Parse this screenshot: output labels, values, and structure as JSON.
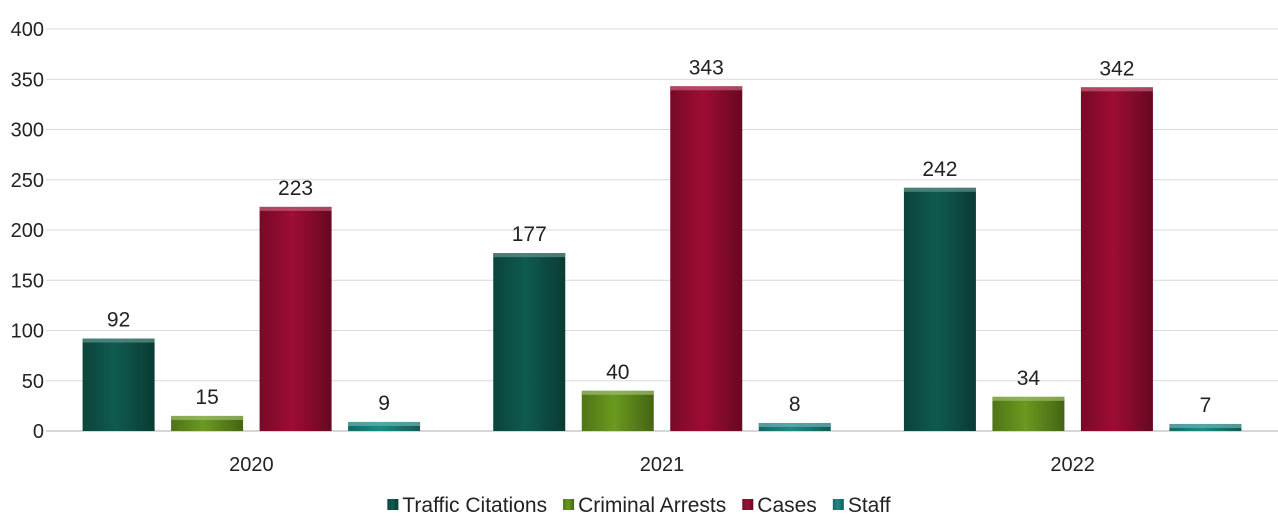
{
  "chart_data": {
    "type": "bar",
    "categories": [
      "2020",
      "2021",
      "2022"
    ],
    "series": [
      {
        "name": "Traffic Citations",
        "values": [
          92,
          177,
          242
        ],
        "color": "#0f5b50"
      },
      {
        "name": "Criminal Arrests",
        "values": [
          15,
          40,
          34
        ],
        "color": "#6a9a1f"
      },
      {
        "name": "Cases",
        "values": [
          223,
          343,
          342
        ],
        "color": "#9e0d34"
      },
      {
        "name": "Staff",
        "values": [
          9,
          8,
          7
        ],
        "color": "#1c8a86"
      }
    ],
    "y_ticks": [
      "0",
      "50",
      "100",
      "150",
      "200",
      "250",
      "300",
      "350",
      "400"
    ],
    "ylim": [
      0,
      400
    ],
    "grid": true,
    "legend_position": "bottom",
    "data_labels": true
  }
}
